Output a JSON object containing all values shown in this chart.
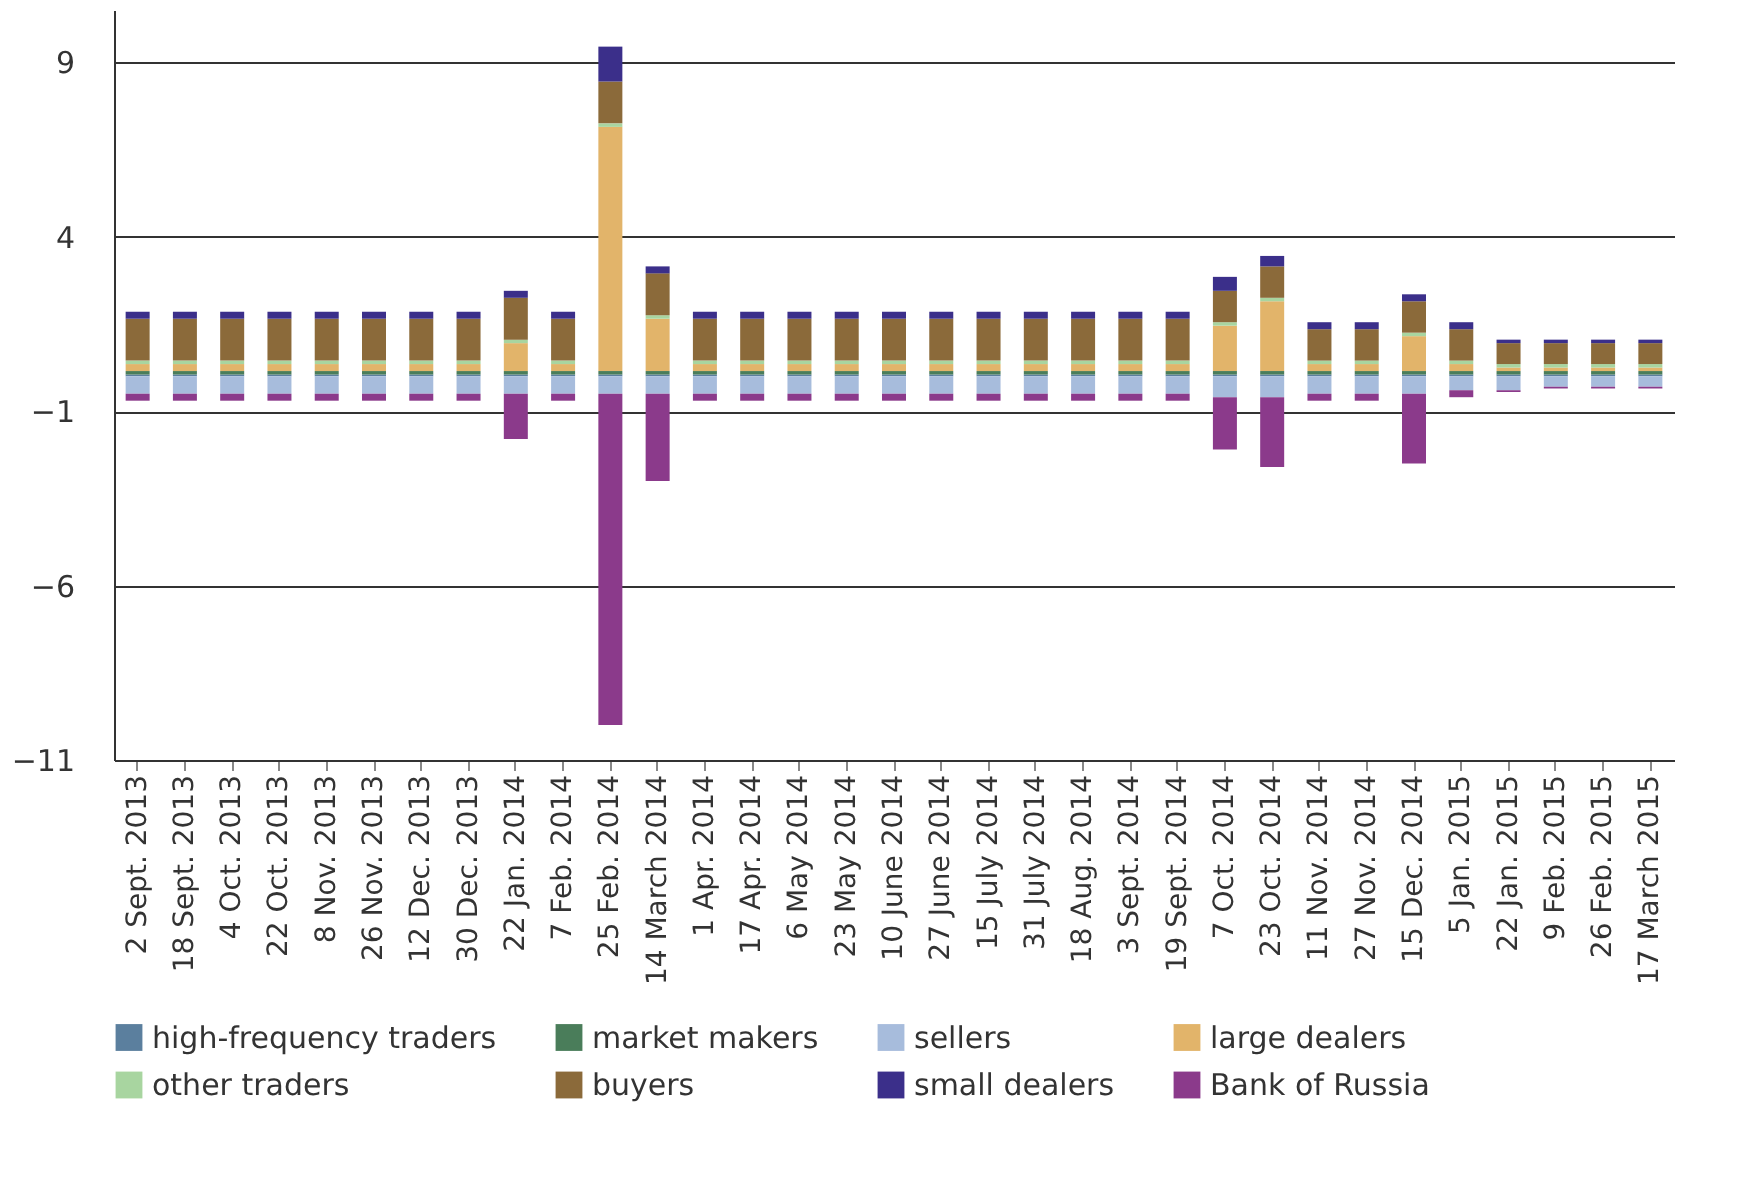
{
  "chart_data": {
    "type": "bar",
    "stacked": true,
    "categories": [
      "2 Sept. 2013",
      "18 Sept. 2013",
      "4 Oct. 2013",
      "22 Oct. 2013",
      "8 Nov. 2013",
      "26 Nov. 2013",
      "12 Dec. 2013",
      "30 Dec. 2013",
      "22 Jan. 2014",
      "7 Feb. 2014",
      "25 Feb. 2014",
      "14 March 2014",
      "1 Apr. 2014",
      "17 Apr. 2014",
      "6 May 2014",
      "23 May 2014",
      "10 June 2014",
      "27 June 2014",
      "15 July 2014",
      "31 July 2014",
      "18 Aug. 2014",
      "3 Sept. 2014",
      "19 Sept. 2014",
      "7 Oct. 2014",
      "23 Oct. 2014",
      "11 Nov. 2014",
      "27 Nov. 2014",
      "15 Dec. 2014",
      "5 Jan. 2015",
      "22 Jan. 2015",
      "9 Feb. 2015",
      "26 Feb. 2015",
      "17 March 2015"
    ],
    "series": [
      {
        "name": "high-frequency traders",
        "color": "#5b7f9e",
        "values": [
          0.05,
          0.05,
          0.05,
          0.05,
          0.05,
          0.05,
          0.05,
          0.05,
          0.05,
          0.05,
          0.05,
          0.05,
          0.05,
          0.05,
          0.05,
          0.05,
          0.05,
          0.05,
          0.05,
          0.05,
          0.05,
          0.05,
          0.05,
          0.05,
          0.05,
          0.05,
          0.05,
          0.05,
          0.05,
          0.05,
          0.05,
          0.05,
          0.05
        ]
      },
      {
        "name": "market makers",
        "color": "#4a7d5a",
        "values": [
          0.1,
          0.1,
          0.1,
          0.1,
          0.1,
          0.1,
          0.1,
          0.1,
          0.1,
          0.1,
          0.1,
          0.1,
          0.1,
          0.1,
          0.1,
          0.1,
          0.1,
          0.1,
          0.1,
          0.1,
          0.1,
          0.1,
          0.1,
          0.1,
          0.1,
          0.1,
          0.1,
          0.1,
          0.1,
          0.1,
          0.1,
          0.1,
          0.1
        ]
      },
      {
        "name": "sellers",
        "color": "#a7bcdc",
        "values": [
          -0.5,
          -0.5,
          -0.5,
          -0.5,
          -0.5,
          -0.5,
          -0.5,
          -0.5,
          -0.5,
          -0.5,
          -0.5,
          -0.5,
          -0.5,
          -0.5,
          -0.5,
          -0.5,
          -0.5,
          -0.5,
          -0.5,
          -0.5,
          -0.5,
          -0.5,
          -0.5,
          -0.6,
          -0.6,
          -0.5,
          -0.5,
          -0.5,
          -0.4,
          -0.4,
          -0.3,
          -0.3,
          -0.3
        ]
      },
      {
        "name": "large dealers",
        "color": "#e2b46a",
        "values": [
          0.2,
          0.2,
          0.2,
          0.2,
          0.2,
          0.2,
          0.2,
          0.2,
          0.8,
          0.2,
          7.0,
          1.5,
          0.2,
          0.2,
          0.2,
          0.2,
          0.2,
          0.2,
          0.2,
          0.2,
          0.2,
          0.2,
          0.2,
          1.3,
          2.0,
          0.2,
          0.2,
          1.0,
          0.2,
          0.1,
          0.1,
          0.1,
          0.1
        ]
      },
      {
        "name": "other traders",
        "color": "#a8d5a0",
        "values": [
          0.1,
          0.1,
          0.1,
          0.1,
          0.1,
          0.1,
          0.1,
          0.1,
          0.1,
          0.1,
          0.1,
          0.1,
          0.1,
          0.1,
          0.1,
          0.1,
          0.1,
          0.1,
          0.1,
          0.1,
          0.1,
          0.1,
          0.1,
          0.1,
          0.1,
          0.1,
          0.1,
          0.1,
          0.1,
          0.1,
          0.1,
          0.1,
          0.1
        ]
      },
      {
        "name": "buyers",
        "color": "#8b6a3a",
        "values": [
          1.2,
          1.2,
          1.2,
          1.2,
          1.2,
          1.2,
          1.2,
          1.2,
          1.2,
          1.2,
          1.2,
          1.2,
          1.2,
          1.2,
          1.2,
          1.2,
          1.2,
          1.2,
          1.2,
          1.2,
          1.2,
          1.2,
          1.2,
          0.9,
          0.9,
          0.9,
          0.9,
          0.9,
          0.9,
          0.6,
          0.6,
          0.6,
          0.6
        ]
      },
      {
        "name": "small dealers",
        "color": "#3b2f8a",
        "values": [
          0.2,
          0.2,
          0.2,
          0.2,
          0.2,
          0.2,
          0.2,
          0.2,
          0.2,
          0.2,
          1.0,
          0.2,
          0.2,
          0.2,
          0.2,
          0.2,
          0.2,
          0.2,
          0.2,
          0.2,
          0.2,
          0.2,
          0.2,
          0.4,
          0.3,
          0.2,
          0.2,
          0.2,
          0.2,
          0.1,
          0.1,
          0.1,
          0.1
        ]
      },
      {
        "name": "Bank of Russia",
        "color": "#8b3a8b",
        "values": [
          -0.2,
          -0.2,
          -0.2,
          -0.2,
          -0.2,
          -0.2,
          -0.2,
          -0.2,
          -1.3,
          -0.2,
          -9.5,
          -2.5,
          -0.2,
          -0.2,
          -0.2,
          -0.2,
          -0.2,
          -0.2,
          -0.2,
          -0.2,
          -0.2,
          -0.2,
          -0.2,
          -1.5,
          -2.0,
          -0.2,
          -0.2,
          -2.0,
          -0.2,
          -0.05,
          -0.05,
          -0.05,
          -0.05
        ]
      }
    ],
    "ylim": [
      -11,
      10.5
    ],
    "yticks": [
      {
        "value": -11,
        "label": "−11"
      },
      {
        "value": -6,
        "label": "−6"
      },
      {
        "value": -1,
        "label": "−1"
      },
      4,
      9
    ],
    "grid": "y",
    "legend": "bottom"
  }
}
